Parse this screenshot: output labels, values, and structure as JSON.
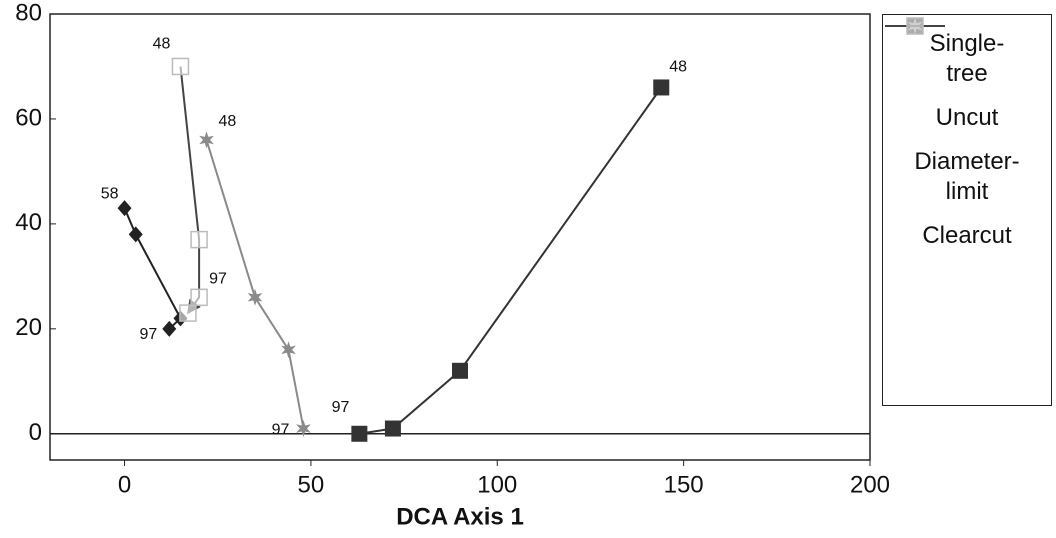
{
  "chart_data": {
    "type": "line",
    "x_label": "DCA Axis 1",
    "xlim": [
      -20,
      200
    ],
    "xticks": [
      0,
      50,
      100,
      150,
      200
    ],
    "ylim": [
      -5,
      80
    ],
    "yticks": [
      0,
      20,
      40,
      60,
      80
    ],
    "grid": false,
    "legend": "right",
    "series": [
      {
        "name": "Single-\ntree",
        "color": "#333333",
        "marker": "square",
        "x": [
          63,
          72,
          90,
          144
        ],
        "values": [
          0,
          1,
          12,
          66
        ],
        "point_labels": [
          "97",
          null,
          null,
          "48"
        ]
      },
      {
        "name": "Uncut",
        "color": "#222222",
        "marker": "diamond",
        "x": [
          0,
          3,
          15,
          12
        ],
        "values": [
          43,
          38,
          22,
          20
        ],
        "point_labels": [
          "58",
          null,
          null,
          "97"
        ]
      },
      {
        "name": "Diameter-\nlimit",
        "color": "#8a8a8a",
        "marker": "star",
        "x": [
          22,
          35,
          44,
          48
        ],
        "values": [
          56,
          26,
          16,
          1
        ],
        "point_labels": [
          "48",
          null,
          null,
          "97"
        ]
      },
      {
        "name": "Clearcut",
        "color": "#444444",
        "marker": "open-square",
        "x": [
          15,
          20,
          20,
          17
        ],
        "values": [
          70,
          37,
          26,
          23
        ],
        "point_labels": [
          "48",
          null,
          "97",
          null
        ]
      }
    ]
  }
}
